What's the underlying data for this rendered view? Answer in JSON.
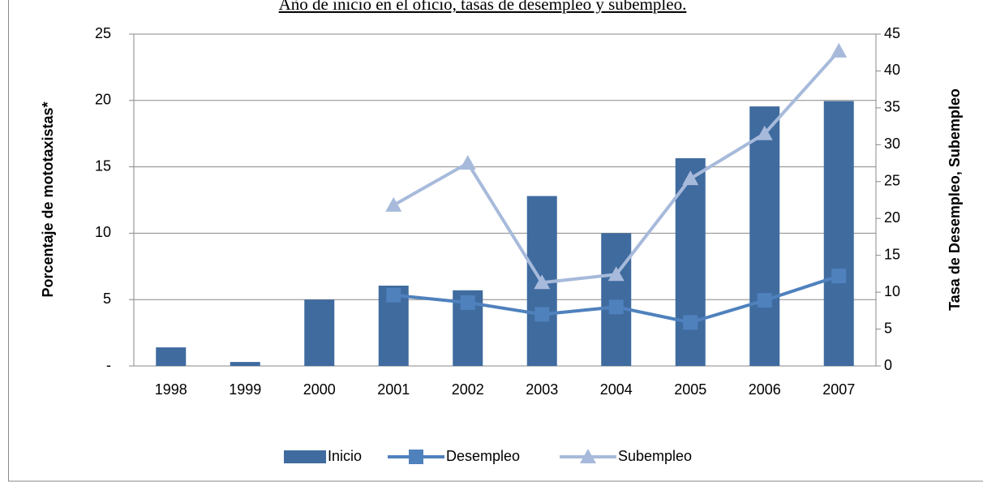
{
  "chart_data": {
    "type": "bar",
    "title": "Año de inicio en el oficio, tasas de desempleo y subempleo.",
    "y_label": "Porcentaje de mototaxistas*",
    "y2_label": "Tasa de Desempleo, Subempleo",
    "categories": [
      "1998",
      "1999",
      "2000",
      "2001",
      "2002",
      "2003",
      "2004",
      "2005",
      "2006",
      "2007"
    ],
    "series": [
      {
        "name": "Inicio",
        "type": "bar",
        "color": "#3f6b9f",
        "values": [
          1.4,
          0.3,
          5.0,
          6.05,
          5.7,
          12.8,
          10.0,
          15.65,
          19.55,
          19.95
        ]
      },
      {
        "name": "Desempleo",
        "type": "line",
        "axis": "y2",
        "marker": "square",
        "color": "#4f81bd",
        "values": [
          null,
          null,
          null,
          9.6,
          8.6,
          7.0,
          8.0,
          5.9,
          8.9,
          12.2
        ]
      },
      {
        "name": "Subempleo",
        "type": "line",
        "axis": "y2",
        "marker": "triangle",
        "color": "#a7badb",
        "values": [
          null,
          null,
          null,
          21.8,
          27.5,
          11.3,
          12.4,
          25.4,
          31.5,
          42.7
        ]
      }
    ],
    "ylim": [
      0,
      25
    ],
    "yticks": [
      {
        "value": 0,
        "label": "-"
      },
      5,
      10,
      15,
      20,
      25
    ],
    "y2lim": [
      0,
      45
    ],
    "y2ticks": [
      0,
      5,
      10,
      15,
      20,
      25,
      30,
      35,
      40,
      45
    ],
    "grid": true,
    "legend": "bottom"
  }
}
